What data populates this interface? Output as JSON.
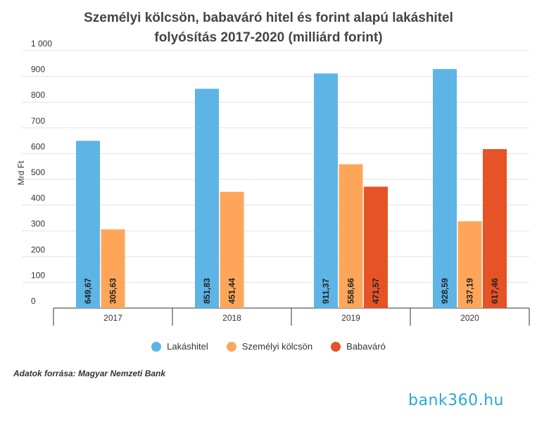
{
  "title_line1": "Személyi kölcsön, babaváró hitel és forint alapú lakáshitel",
  "title_line2": "folyósítás 2017-2020 (milliárd forint)",
  "source": "Adatok forrása: Magyar Nemzeti Bank",
  "logo": "bank360.hu",
  "chart_data": {
    "type": "bar",
    "categories": [
      "2017",
      "2018",
      "2019",
      "2020"
    ],
    "series": [
      {
        "name": "Lakáshitel",
        "color": "#5db4e5",
        "values": [
          649.67,
          851.83,
          911.37,
          928.59
        ],
        "labels": [
          "649,67",
          "851,83",
          "911,37",
          "928,59"
        ]
      },
      {
        "name": "Személyi kölcsön",
        "color": "#fda65a",
        "values": [
          305.63,
          451.44,
          558.66,
          337.19
        ],
        "labels": [
          "305,63",
          "451,44",
          "558,66",
          "337,19"
        ]
      },
      {
        "name": "Babaváró",
        "color": "#e55326",
        "values": [
          null,
          null,
          471.57,
          617.46
        ],
        "labels": [
          "",
          "",
          "471,57",
          "617,46"
        ]
      }
    ],
    "ylabel": "Mrd Ft",
    "ylim": [
      0,
      1000
    ],
    "yticks": [
      0,
      100,
      200,
      300,
      400,
      500,
      600,
      700,
      800,
      900,
      1000
    ],
    "ytick_labels": [
      "0",
      "100",
      "200",
      "300",
      "400",
      "500",
      "600",
      "700",
      "800",
      "900",
      "1 000"
    ],
    "grid": true,
    "legend_position": "bottom"
  }
}
